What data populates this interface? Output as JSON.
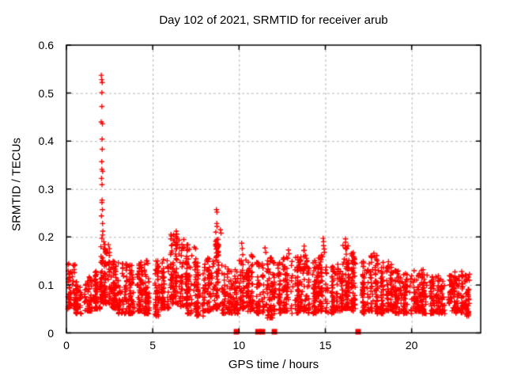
{
  "page": {
    "background": "#ffffff"
  },
  "chart_data": {
    "type": "scatter",
    "title": "Day 102 of 2021, SRMTID for receiver arub",
    "xlabel": "GPS time / hours",
    "ylabel": "SRMTID / TECUs",
    "xlim": [
      0,
      24
    ],
    "ylim": [
      0,
      0.6
    ],
    "xticks": [
      {
        "v": 0,
        "label": "0"
      },
      {
        "v": 5,
        "label": "5"
      },
      {
        "v": 10,
        "label": "10"
      },
      {
        "v": 15,
        "label": "15"
      },
      {
        "v": 20,
        "label": "20"
      }
    ],
    "yticks": [
      {
        "v": 0.0,
        "label": "0"
      },
      {
        "v": 0.1,
        "label": "0.1"
      },
      {
        "v": 0.2,
        "label": "0.2"
      },
      {
        "v": 0.3,
        "label": "0.3"
      },
      {
        "v": 0.4,
        "label": "0.4"
      },
      {
        "v": 0.5,
        "label": "0.5"
      },
      {
        "v": 0.6,
        "label": "0.6"
      }
    ],
    "grid": {
      "show": true,
      "style": "dashed",
      "color": "#b4b4b4"
    },
    "axis_color": "#000000",
    "marker": {
      "glyph": "plus",
      "color": "#ff0000",
      "size": 7
    },
    "legend": null,
    "seed": 20210412,
    "scatter_bands": [
      [
        0.0,
        0.5,
        0.05,
        0.148,
        60
      ],
      [
        0.5,
        1.0,
        0.04,
        0.112,
        55
      ],
      [
        1.0,
        1.5,
        0.045,
        0.118,
        55
      ],
      [
        1.5,
        2.0,
        0.05,
        0.13,
        60
      ],
      [
        2.0,
        2.5,
        0.06,
        0.185,
        85
      ],
      [
        2.5,
        3.0,
        0.05,
        0.15,
        70
      ],
      [
        3.0,
        3.5,
        0.04,
        0.148,
        60
      ],
      [
        3.5,
        4.0,
        0.04,
        0.142,
        60
      ],
      [
        4.0,
        4.5,
        0.045,
        0.15,
        62
      ],
      [
        4.5,
        5.0,
        0.04,
        0.152,
        62
      ],
      [
        5.0,
        5.5,
        0.035,
        0.155,
        58
      ],
      [
        5.5,
        6.0,
        0.05,
        0.17,
        68
      ],
      [
        6.0,
        6.5,
        0.06,
        0.208,
        85
      ],
      [
        6.5,
        7.0,
        0.055,
        0.2,
        80
      ],
      [
        7.0,
        7.5,
        0.04,
        0.185,
        62
      ],
      [
        7.5,
        8.0,
        0.035,
        0.148,
        62
      ],
      [
        8.0,
        8.5,
        0.045,
        0.158,
        66
      ],
      [
        8.5,
        9.0,
        0.05,
        0.2,
        66
      ],
      [
        9.0,
        9.5,
        0.04,
        0.142,
        58
      ],
      [
        9.5,
        10.0,
        0.04,
        0.132,
        55
      ],
      [
        10.0,
        10.5,
        0.05,
        0.152,
        62
      ],
      [
        10.5,
        11.0,
        0.045,
        0.165,
        58
      ],
      [
        11.0,
        11.5,
        0.04,
        0.148,
        58
      ],
      [
        11.5,
        12.0,
        0.03,
        0.158,
        58
      ],
      [
        12.0,
        12.5,
        0.04,
        0.148,
        62
      ],
      [
        12.5,
        13.0,
        0.045,
        0.158,
        62
      ],
      [
        13.0,
        13.5,
        0.04,
        0.162,
        62
      ],
      [
        13.5,
        14.0,
        0.045,
        0.172,
        62
      ],
      [
        14.0,
        14.5,
        0.04,
        0.152,
        62
      ],
      [
        14.5,
        15.0,
        0.045,
        0.168,
        66
      ],
      [
        15.0,
        15.5,
        0.04,
        0.142,
        58
      ],
      [
        15.5,
        16.0,
        0.045,
        0.148,
        58
      ],
      [
        16.0,
        16.5,
        0.05,
        0.195,
        72
      ],
      [
        16.5,
        17.0,
        0.045,
        0.172,
        62
      ],
      [
        17.0,
        17.5,
        0.04,
        0.152,
        62
      ],
      [
        17.5,
        18.0,
        0.045,
        0.162,
        62
      ],
      [
        18.0,
        18.5,
        0.04,
        0.148,
        62
      ],
      [
        18.5,
        19.0,
        0.045,
        0.152,
        62
      ],
      [
        19.0,
        19.5,
        0.04,
        0.132,
        56
      ],
      [
        19.5,
        20.0,
        0.04,
        0.126,
        56
      ],
      [
        20.0,
        20.5,
        0.045,
        0.13,
        56
      ],
      [
        20.5,
        21.0,
        0.04,
        0.138,
        56
      ],
      [
        21.0,
        21.5,
        0.04,
        0.118,
        52
      ],
      [
        21.5,
        22.0,
        0.04,
        0.122,
        52
      ],
      [
        22.0,
        22.5,
        0.045,
        0.126,
        52
      ],
      [
        22.5,
        23.0,
        0.04,
        0.13,
        56
      ],
      [
        23.0,
        23.35,
        0.035,
        0.128,
        45
      ]
    ],
    "peak_points": [
      [
        2.04,
        0.537
      ],
      [
        2.06,
        0.528
      ],
      [
        2.05,
        0.522
      ],
      [
        2.06,
        0.501
      ],
      [
        2.05,
        0.472
      ],
      [
        2.04,
        0.44
      ],
      [
        2.08,
        0.436
      ],
      [
        2.06,
        0.404
      ],
      [
        2.05,
        0.383
      ],
      [
        2.07,
        0.357
      ],
      [
        2.05,
        0.341
      ],
      [
        2.09,
        0.337
      ],
      [
        2.06,
        0.322
      ],
      [
        2.05,
        0.309
      ],
      [
        2.06,
        0.277
      ],
      [
        2.04,
        0.272
      ],
      [
        2.07,
        0.257
      ],
      [
        2.05,
        0.244
      ],
      [
        2.08,
        0.228
      ],
      [
        2.1,
        0.212
      ],
      [
        2.12,
        0.204
      ],
      [
        2.08,
        0.197
      ],
      [
        2.15,
        0.19
      ],
      [
        2.2,
        0.184
      ],
      [
        2.18,
        0.176
      ],
      [
        2.25,
        0.17
      ],
      [
        2.3,
        0.165
      ],
      [
        6.38,
        0.212
      ],
      [
        6.42,
        0.206
      ],
      [
        6.35,
        0.2
      ],
      [
        6.45,
        0.197
      ],
      [
        6.52,
        0.193
      ],
      [
        8.68,
        0.257
      ],
      [
        8.72,
        0.252
      ],
      [
        8.7,
        0.228
      ],
      [
        8.74,
        0.222
      ],
      [
        8.65,
        0.21
      ],
      [
        8.9,
        0.215
      ],
      [
        8.95,
        0.208
      ],
      [
        8.69,
        0.186
      ],
      [
        8.76,
        0.179
      ],
      [
        10.15,
        0.187
      ],
      [
        10.18,
        0.176
      ],
      [
        10.22,
        0.163
      ],
      [
        11.5,
        0.177
      ],
      [
        11.55,
        0.168
      ],
      [
        12.85,
        0.173
      ],
      [
        12.9,
        0.165
      ],
      [
        13.75,
        0.181
      ],
      [
        13.8,
        0.172
      ],
      [
        14.85,
        0.197
      ],
      [
        14.9,
        0.19
      ],
      [
        14.88,
        0.182
      ],
      [
        14.93,
        0.175
      ],
      [
        14.96,
        0.168
      ],
      [
        16.15,
        0.196
      ],
      [
        16.2,
        0.189
      ],
      [
        16.18,
        0.182
      ],
      [
        16.25,
        0.176
      ],
      [
        17.8,
        0.166
      ],
      [
        17.85,
        0.158
      ],
      [
        22.92,
        0.128
      ],
      [
        22.96,
        0.121
      ]
    ],
    "zero_marker_times": [
      9.85,
      11.1,
      11.35,
      12.05,
      16.9
    ]
  }
}
